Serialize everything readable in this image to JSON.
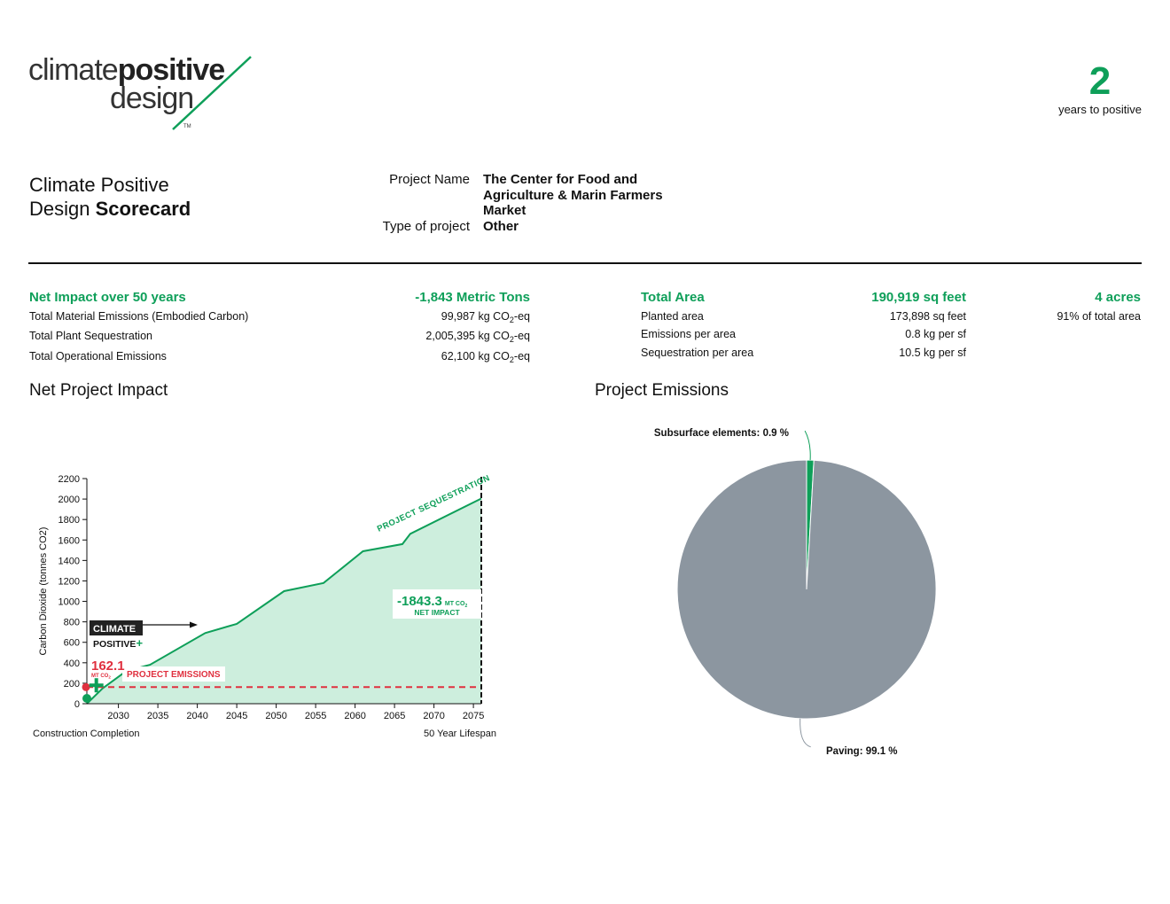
{
  "logo": {
    "word1": "climate",
    "word2": "positive",
    "word3": "design",
    "tm": "TM"
  },
  "years_to_positive": {
    "value": "2",
    "label": "years to positive"
  },
  "title": {
    "line1": "Climate Positive",
    "line2_light": "Design ",
    "line2_bold": "Scorecard"
  },
  "project": {
    "name_label": "Project Name",
    "name_value": "The Center for Food and Agriculture & Marin Farmers Market",
    "type_label": "Type of project",
    "type_value": "Other"
  },
  "impact": {
    "title": "Net Impact over 50 years",
    "value": "-1,843 Metric Tons",
    "rows": [
      {
        "label": "Total Material Emissions (Embodied Carbon)",
        "value": "99,987 kg CO",
        "sub": "2",
        "unit": "-eq"
      },
      {
        "label": "Total Plant Sequestration",
        "value": "2,005,395 kg CO",
        "sub": "2",
        "unit": "-eq"
      },
      {
        "label": "Total Operational Emissions",
        "value": "62,100 kg CO",
        "sub": "2",
        "unit": "-eq"
      }
    ]
  },
  "area": {
    "title": "Total Area",
    "value": "190,919 sq feet",
    "acres": "4 acres",
    "rows": [
      {
        "label": "Planted area",
        "value": "173,898 sq feet",
        "extra": "91% of total area"
      },
      {
        "label": "Emissions per area",
        "value": "0.8 kg per sf",
        "extra": ""
      },
      {
        "label": "Sequestration per area",
        "value": "10.5 kg per sf",
        "extra": ""
      }
    ]
  },
  "sections": {
    "net_impact": "Net Project Impact",
    "emissions": "Project Emissions"
  },
  "colors": {
    "green": "#0e9f59",
    "green_fill": "#cdeedd",
    "red": "#e0303f",
    "gray": "#8c96a0"
  },
  "chart_data": [
    {
      "type": "area",
      "ylabel": "Carbon Dioxide (tonnes CO2)",
      "ylim": [
        0,
        2200
      ],
      "yticks": [
        0,
        200,
        400,
        600,
        800,
        1000,
        1200,
        1400,
        1600,
        1800,
        2000,
        2200
      ],
      "xlim": [
        2026,
        2076
      ],
      "xticks": [
        2030,
        2035,
        2040,
        2045,
        2050,
        2055,
        2060,
        2065,
        2070,
        2075
      ],
      "series": [
        {
          "name": "PROJECT SEQUESTRATION",
          "x": [
            2026,
            2028,
            2031,
            2034,
            2041,
            2045,
            2051,
            2056,
            2061,
            2066,
            2067,
            2076
          ],
          "y": [
            0,
            150,
            320,
            380,
            690,
            780,
            1100,
            1180,
            1490,
            1560,
            1660,
            2005
          ]
        },
        {
          "name": "PROJECT EMISSIONS",
          "x": [
            2026,
            2076
          ],
          "y": [
            162.1,
            162.1
          ]
        }
      ],
      "annotations": {
        "emissions_value": "162.1",
        "emissions_unit": "MT CO",
        "emissions_sub": "2",
        "emissions_label": "PROJECT EMISSIONS",
        "net_value": "-1843.3",
        "net_unit": "MT CO",
        "net_sub": "2",
        "net_label": "NET IMPACT",
        "sequestration_label": "PROJECT SEQUESTRATION",
        "climate_label": "CLIMATE",
        "positive_label": "POSITIVE",
        "plus": "+",
        "start_label": "Construction Completion",
        "end_label": "50 Year Lifespan"
      }
    },
    {
      "type": "pie",
      "slices": [
        {
          "label": "Subsurface elements: 0.9 %",
          "value": 0.9,
          "color": "#0e9f59"
        },
        {
          "label": "Paving: 99.1 %",
          "value": 99.1,
          "color": "#8c96a0"
        }
      ]
    }
  ]
}
